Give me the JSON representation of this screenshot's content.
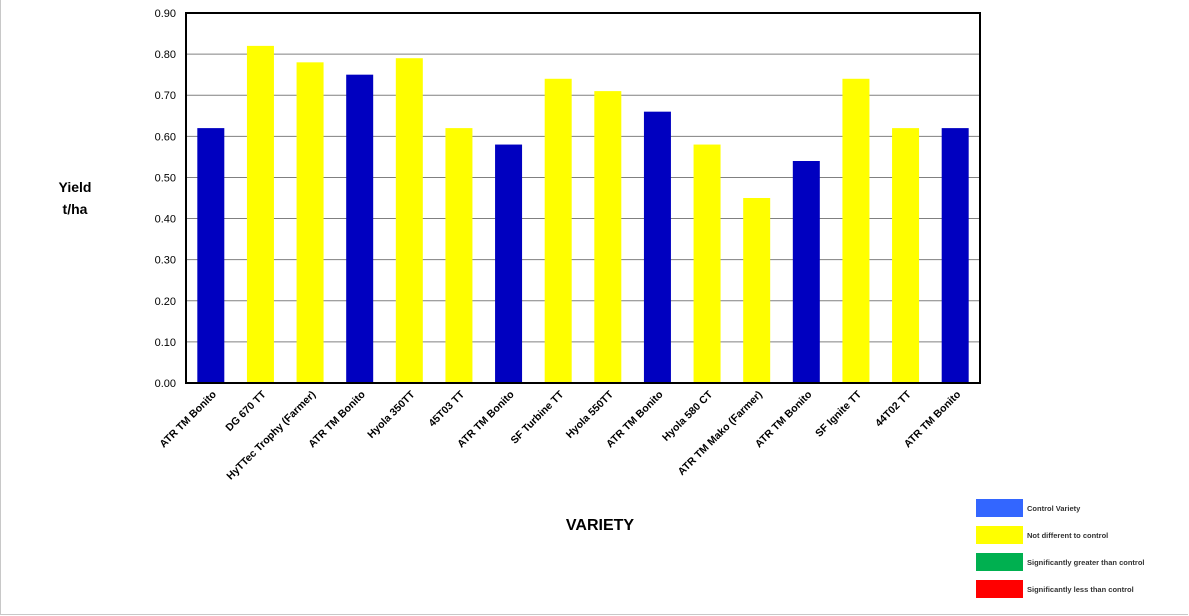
{
  "chart_data": {
    "type": "bar",
    "xlabel": "VARIETY",
    "ylabel": "Yield\nt/ha",
    "ylim": [
      0,
      0.9
    ],
    "yticks": [
      "0.00",
      "0.10",
      "0.20",
      "0.30",
      "0.40",
      "0.50",
      "0.60",
      "0.70",
      "0.80",
      "0.90"
    ],
    "grid": true,
    "legend_position": "bottom-right",
    "categories": [
      "ATR TM Bonito",
      "DG 670 TT",
      "HyTTec Trophy (Farmer)",
      "ATR TM Bonito",
      "Hyola 350TT",
      "45T03 TT",
      "ATR TM Bonito",
      "SF Turbine TT",
      "Hyola 550TT",
      "ATR TM Bonito",
      "Hyola 580 CT",
      "ATR TM Mako (Farmer)",
      "ATR TM Bonito",
      "SF Ignite TT",
      "44T02 TT",
      "ATR TM Bonito"
    ],
    "values": [
      0.62,
      0.82,
      0.78,
      0.75,
      0.79,
      0.62,
      0.58,
      0.74,
      0.71,
      0.66,
      0.58,
      0.45,
      0.54,
      0.74,
      0.62,
      0.62
    ],
    "bar_classes": [
      "control",
      "nd",
      "nd",
      "control",
      "nd",
      "nd",
      "control",
      "nd",
      "nd",
      "control",
      "nd",
      "nd",
      "control",
      "nd",
      "nd",
      "control"
    ]
  },
  "colors": {
    "control": "#0000c0",
    "nd": "#ffff00"
  },
  "legend": [
    {
      "label": "Control Variety",
      "color": "#3366ff"
    },
    {
      "label": "Not different to control",
      "color": "#ffff00"
    },
    {
      "label": "Significantly greater than control",
      "color": "#00b050"
    },
    {
      "label": "Significantly less than control",
      "color": "#ff0000"
    }
  ]
}
